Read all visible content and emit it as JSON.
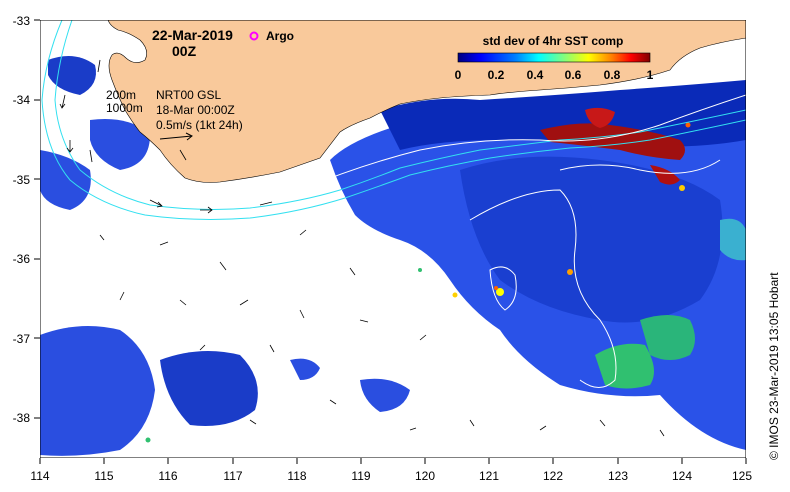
{
  "header": {
    "date": "22-Mar-2019",
    "time": "00Z",
    "argo_label": "Argo"
  },
  "colorbar": {
    "title": "std dev of 4hr SST comp",
    "ticks": [
      "0",
      "0.2",
      "0.4",
      "0.6",
      "0.8",
      "1"
    ],
    "min": 0,
    "max": 1,
    "colors": [
      "#00007f",
      "#0000ff",
      "#0080ff",
      "#00ffff",
      "#80ff80",
      "#ffff00",
      "#ff8000",
      "#ff0000",
      "#800000"
    ]
  },
  "legend": {
    "depth_200": "200m",
    "depth_1000": "1000m",
    "source": "NRT00 GSL",
    "source_date": "18-Mar 00:00Z",
    "scale": "0.5m/s (1kt 24h)"
  },
  "axes": {
    "lon_ticks": [
      "114",
      "115",
      "116",
      "117",
      "118",
      "119",
      "120",
      "121",
      "122",
      "123",
      "124",
      "125"
    ],
    "lat_ticks": [
      "-33",
      "-34",
      "-35",
      "-36",
      "-37",
      "-38"
    ],
    "lon_range": [
      114,
      125
    ],
    "lat_range": [
      -38.5,
      -33
    ]
  },
  "credit": "© IMOS 23-Mar-2019 13:05 Hobart",
  "colors": {
    "land": "#f9c99b",
    "isobath": "#33e0f0",
    "contour": "#ffffff",
    "argo": "#ff00ff"
  }
}
